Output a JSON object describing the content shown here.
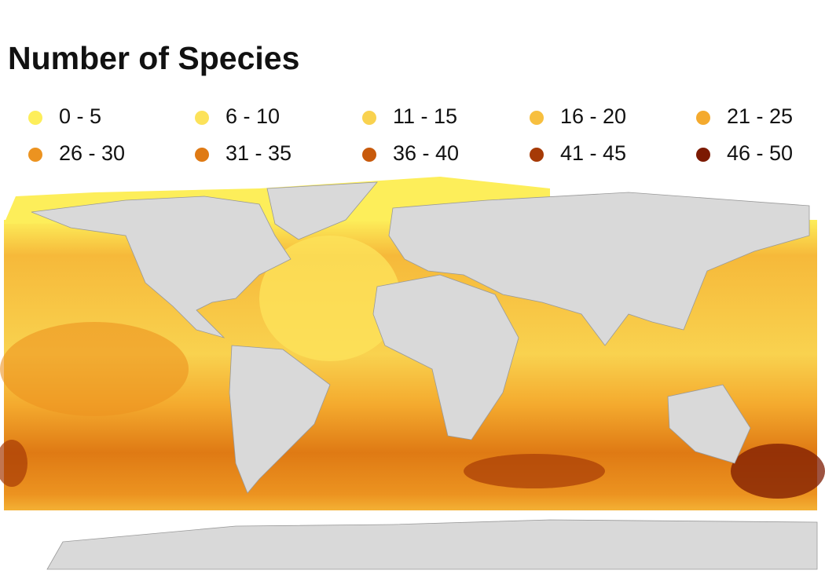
{
  "title": "Number of Species",
  "legend": {
    "items": [
      {
        "label": "0 - 5",
        "color": "#fdee5a"
      },
      {
        "label": "6 - 10",
        "color": "#fce25a"
      },
      {
        "label": "11 - 15",
        "color": "#f9d24f"
      },
      {
        "label": "16 - 20",
        "color": "#f7bf3f"
      },
      {
        "label": "21 - 25",
        "color": "#f4aa2e"
      },
      {
        "label": "26 - 30",
        "color": "#ec9320"
      },
      {
        "label": "31 - 35",
        "color": "#df7a14"
      },
      {
        "label": "36 - 40",
        "color": "#c85a0c"
      },
      {
        "label": "41 - 45",
        "color": "#a63a06"
      },
      {
        "label": "46 - 50",
        "color": "#7c1a02"
      }
    ]
  }
}
